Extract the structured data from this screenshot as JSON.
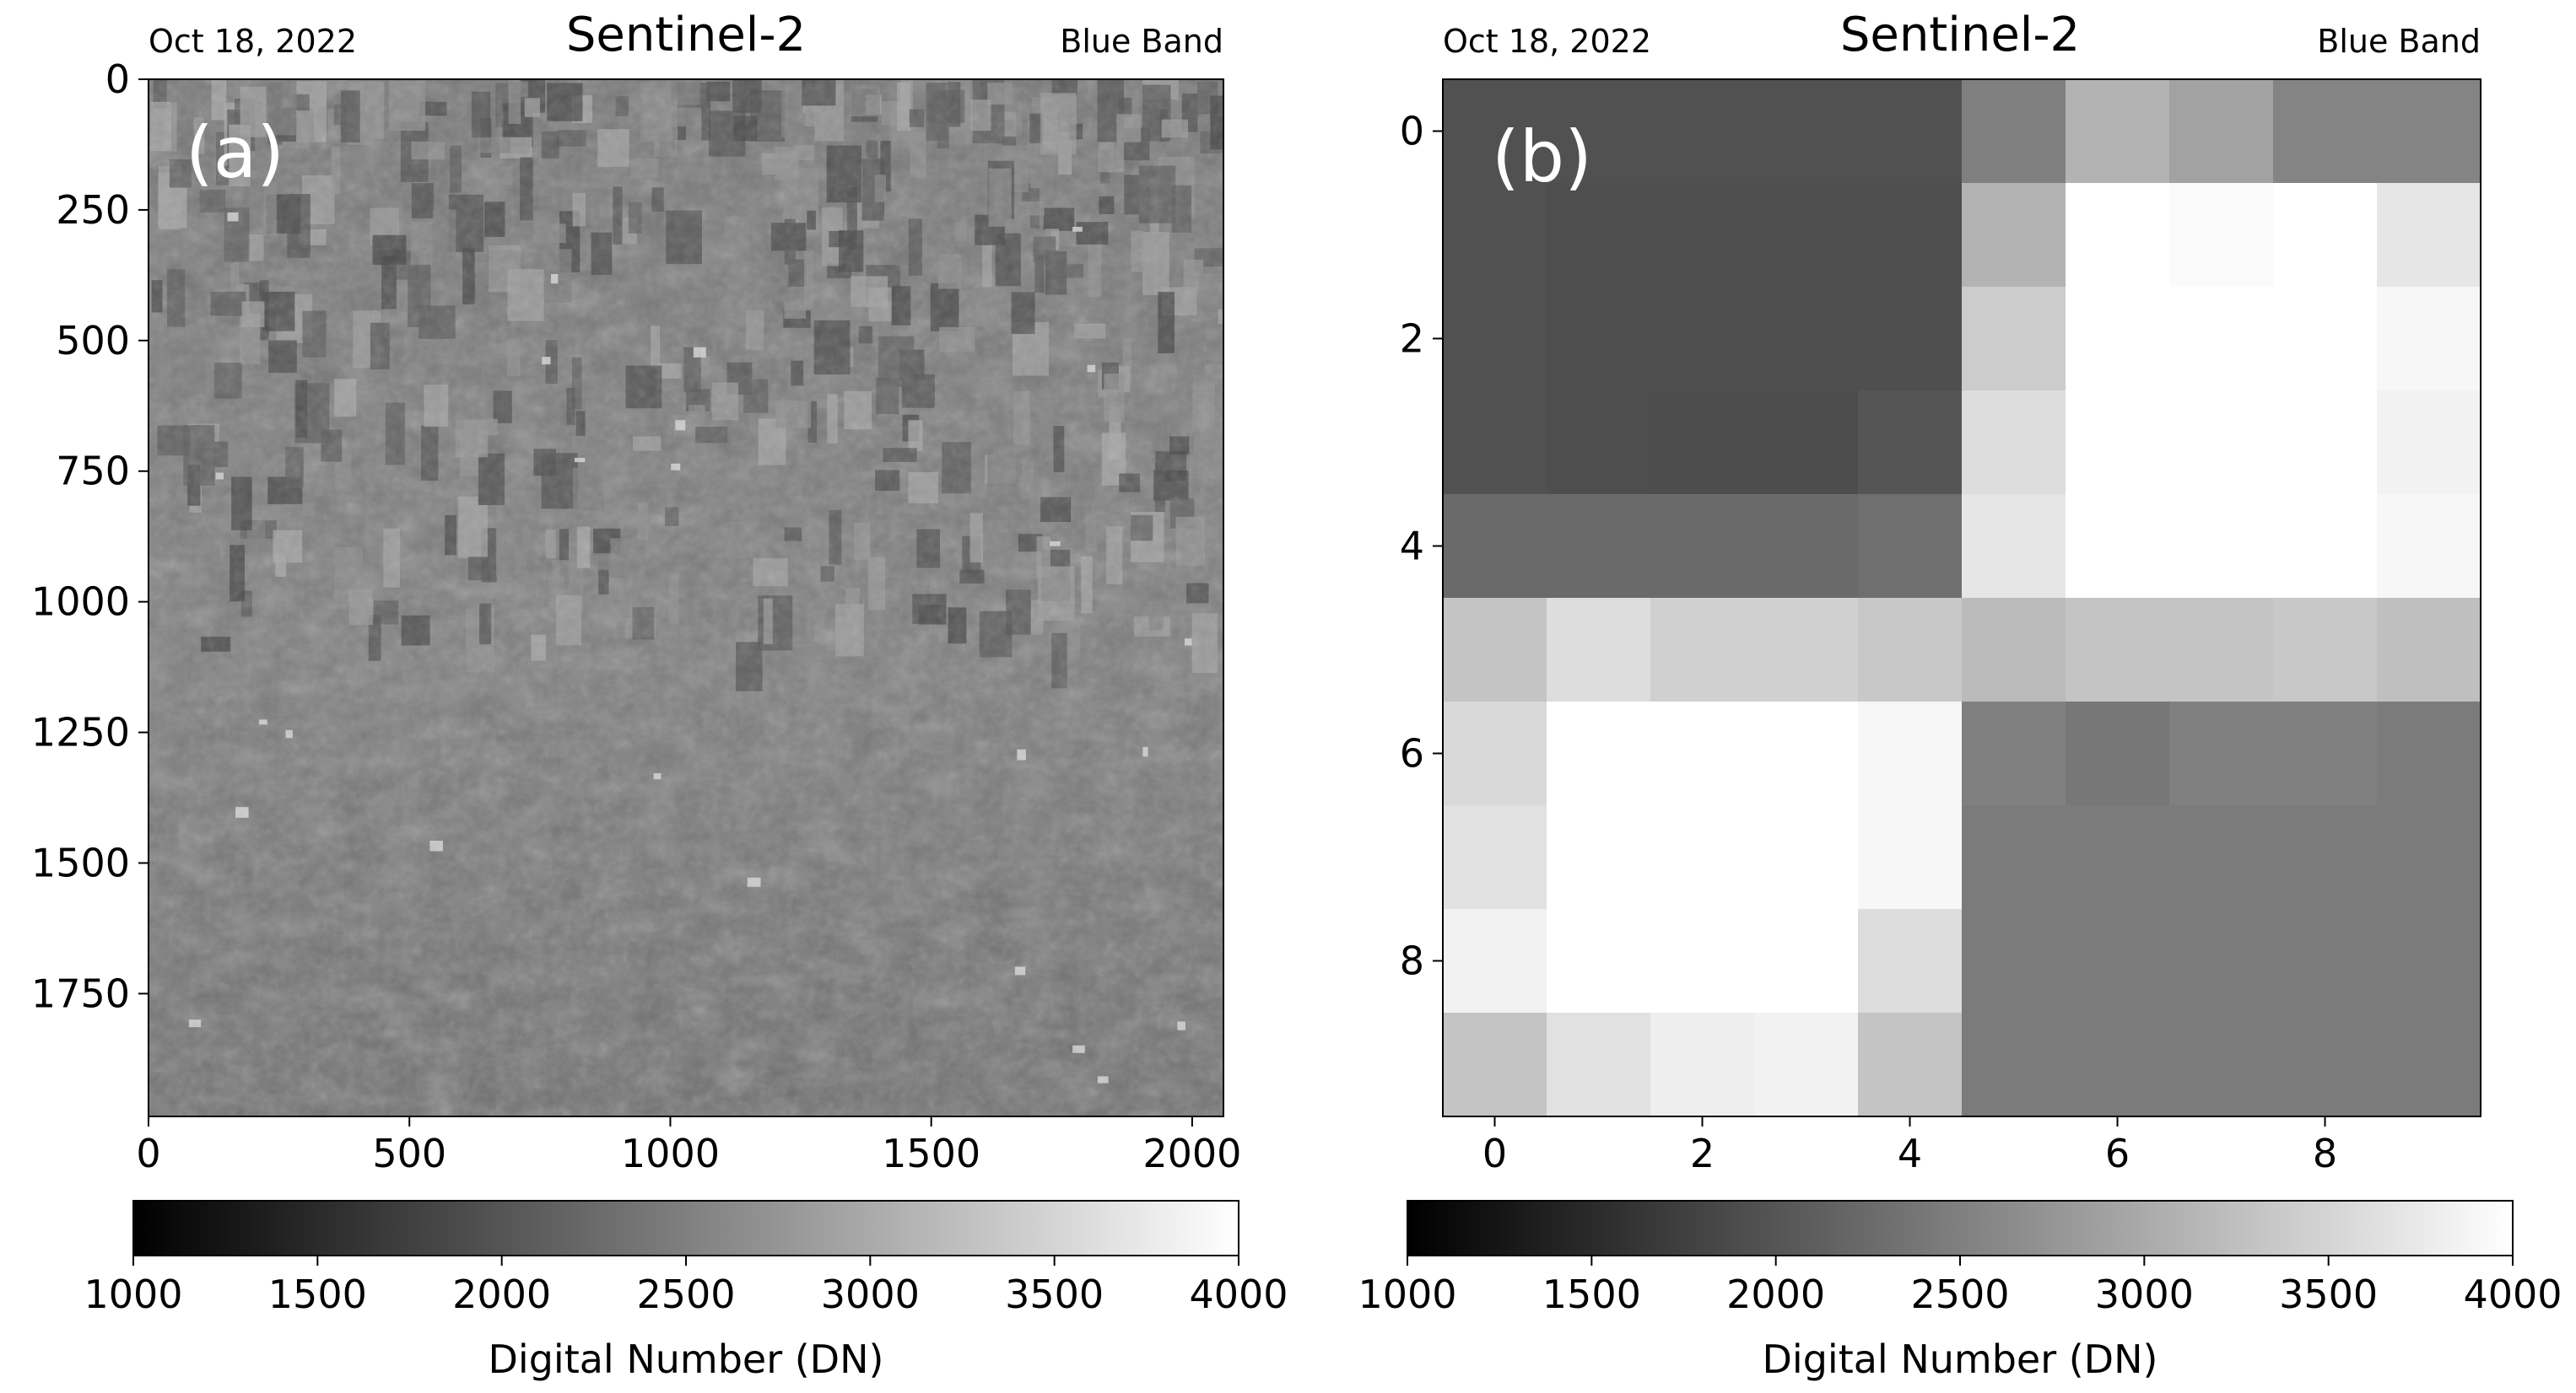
{
  "panels": [
    {
      "panel_label": "(a)",
      "header": {
        "date": "Oct 18, 2022",
        "title": "Sentinel-2",
        "band": "Blue Band"
      },
      "colorbar": {
        "label": "Digital Number (DN)",
        "ticks": [
          "1000",
          "1500",
          "2000",
          "2500",
          "3000",
          "3500",
          "4000"
        ]
      }
    },
    {
      "panel_label": "(b)",
      "header": {
        "date": "Oct 18, 2022",
        "title": "Sentinel-2",
        "band": "Blue Band"
      },
      "colorbar": {
        "label": "Digital Number (DN)",
        "ticks": [
          "1000",
          "1500",
          "2000",
          "2500",
          "3000",
          "3500",
          "4000"
        ]
      }
    }
  ],
  "chart_data": [
    {
      "type": "heatmap",
      "title": "Sentinel-2",
      "subtitle_left": "Oct 18, 2022",
      "subtitle_right": "Blue Band",
      "x_ticks": [
        0,
        500,
        1000,
        1500,
        2000
      ],
      "y_ticks": [
        0,
        250,
        500,
        750,
        1000,
        1250,
        1500,
        1750
      ],
      "xlim": [
        0,
        2060
      ],
      "ylim": [
        1985,
        0
      ],
      "colormap": "gray",
      "vmin": 1000,
      "vmax": 4000,
      "colorbar_label": "Digital Number (DN)",
      "colorbar_ticks": [
        1000,
        1500,
        2000,
        2500,
        3000,
        3500,
        4000
      ]
    },
    {
      "type": "heatmap",
      "title": "Sentinel-2",
      "subtitle_left": "Oct 18, 2022",
      "subtitle_right": "Blue Band",
      "x_ticks": [
        0,
        2,
        4,
        6,
        8
      ],
      "y_ticks": [
        0,
        2,
        4,
        6,
        8
      ],
      "xlim": [
        -0.5,
        9.5
      ],
      "ylim": [
        9.5,
        -0.5
      ],
      "colormap": "gray",
      "vmin": 1000,
      "vmax": 4000,
      "colorbar_label": "Digital Number (DN)",
      "colorbar_ticks": [
        1000,
        1500,
        2000,
        2500,
        3000,
        3500,
        4000
      ],
      "values": [
        [
          1950,
          1950,
          1950,
          1950,
          1950,
          2500,
          3100,
          2900,
          2550,
          2550
        ],
        [
          1950,
          1920,
          1920,
          1920,
          1920,
          3100,
          4000,
          3950,
          4000,
          3700
        ],
        [
          1950,
          1920,
          1920,
          1930,
          1930,
          3400,
          4000,
          4000,
          4000,
          3900
        ],
        [
          1950,
          1920,
          1900,
          1900,
          2000,
          3600,
          4000,
          4000,
          4000,
          3850
        ],
        [
          2250,
          2250,
          2250,
          2250,
          2300,
          3700,
          4000,
          4000,
          4000,
          3900
        ],
        [
          3300,
          3600,
          3450,
          3450,
          3350,
          3200,
          3300,
          3300,
          3350,
          3250
        ],
        [
          3550,
          4000,
          4000,
          4000,
          3900,
          2500,
          2400,
          2500,
          2500,
          2450
        ],
        [
          3650,
          4000,
          4000,
          4000,
          3900,
          2450,
          2450,
          2450,
          2450,
          2450
        ],
        [
          3850,
          4000,
          4000,
          4000,
          3600,
          2450,
          2450,
          2450,
          2450,
          2450
        ],
        [
          3300,
          3650,
          3800,
          3850,
          3300,
          2450,
          2450,
          2450,
          2450,
          2450
        ]
      ]
    }
  ]
}
